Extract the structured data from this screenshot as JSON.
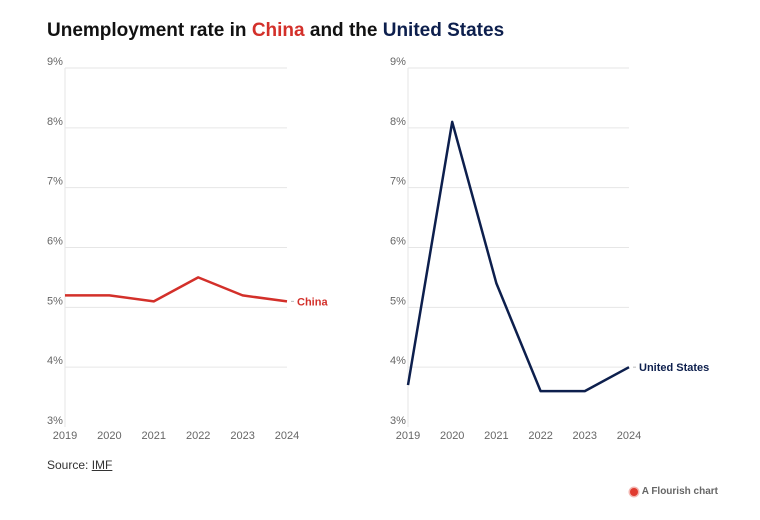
{
  "title": {
    "parts": [
      "Unemployment rate in ",
      "China",
      " and the ",
      "United States"
    ],
    "highlight_colors": [
      "#d3302a",
      "#0d1f4d"
    ]
  },
  "source": {
    "prefix": "Source: ",
    "link_text": "IMF"
  },
  "credit": "A Flourish chart",
  "chart_data": [
    {
      "type": "line",
      "title": "",
      "categories": [
        "2019",
        "2020",
        "2021",
        "2022",
        "2023",
        "2024"
      ],
      "series": [
        {
          "name": "China",
          "values": [
            5.2,
            5.2,
            5.1,
            5.5,
            5.2,
            5.1
          ],
          "color": "#d3302a"
        }
      ],
      "ylim": [
        3,
        9
      ],
      "yticks": [
        "3%",
        "4%",
        "5%",
        "6%",
        "7%",
        "8%",
        "9%"
      ],
      "xlabel": "",
      "ylabel": "",
      "grid": true
    },
    {
      "type": "line",
      "title": "",
      "categories": [
        "2019",
        "2020",
        "2021",
        "2022",
        "2023",
        "2024"
      ],
      "series": [
        {
          "name": "United States",
          "values": [
            3.7,
            8.1,
            5.4,
            3.6,
            3.6,
            4.0
          ],
          "color": "#0d1f4d"
        }
      ],
      "ylim": [
        3,
        9
      ],
      "yticks": [
        "3%",
        "4%",
        "5%",
        "6%",
        "7%",
        "8%",
        "9%"
      ],
      "xlabel": "",
      "ylabel": "",
      "grid": true
    }
  ]
}
